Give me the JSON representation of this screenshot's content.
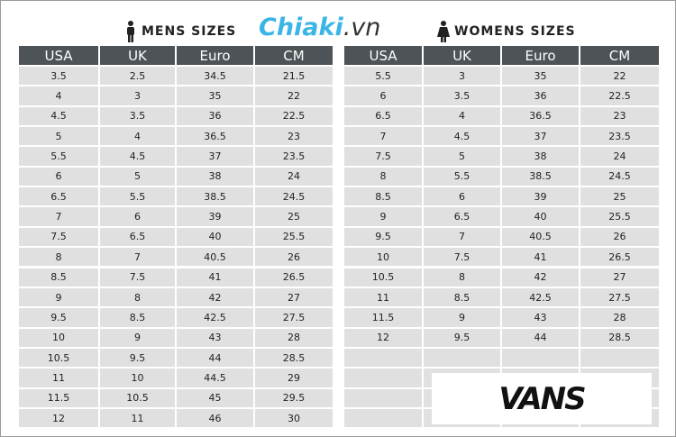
{
  "header": {
    "mens_title": "MENS SIZES",
    "logo_main": "Chiaki",
    "logo_suffix": ".vn",
    "womens_title": "WOMENS SIZES"
  },
  "mens": {
    "columns": [
      "USA",
      "UK",
      "Euro",
      "CM"
    ],
    "rows": [
      [
        3.5,
        2.5,
        34.5,
        21.5
      ],
      [
        4,
        3,
        35,
        22
      ],
      [
        4.5,
        3.5,
        36,
        22.5
      ],
      [
        5,
        4,
        36.5,
        23
      ],
      [
        5.5,
        4.5,
        37,
        23.5
      ],
      [
        6,
        5,
        38,
        24
      ],
      [
        6.5,
        5.5,
        38.5,
        24.5
      ],
      [
        7,
        6,
        39,
        25
      ],
      [
        7.5,
        6.5,
        40,
        25.5
      ],
      [
        8,
        7,
        40.5,
        26
      ],
      [
        8.5,
        7.5,
        41,
        26.5
      ],
      [
        9,
        8,
        42,
        27
      ],
      [
        9.5,
        8.5,
        42.5,
        27.5
      ],
      [
        10,
        9,
        43,
        28
      ],
      [
        10.5,
        9.5,
        44,
        28.5
      ],
      [
        11,
        10,
        44.5,
        29
      ],
      [
        11.5,
        10.5,
        45,
        29.5
      ],
      [
        12,
        11,
        46,
        30
      ]
    ]
  },
  "womens": {
    "columns": [
      "USA",
      "UK",
      "Euro",
      "CM"
    ],
    "rows": [
      [
        5.5,
        3,
        35,
        22
      ],
      [
        6,
        3.5,
        36,
        22.5
      ],
      [
        6.5,
        4,
        36.5,
        23
      ],
      [
        7,
        4.5,
        37,
        23.5
      ],
      [
        7.5,
        5,
        38,
        24
      ],
      [
        8,
        5.5,
        38.5,
        24.5
      ],
      [
        8.5,
        6,
        39,
        25
      ],
      [
        9,
        6.5,
        40,
        25.5
      ],
      [
        9.5,
        7,
        40.5,
        26
      ],
      [
        10,
        7.5,
        41,
        26.5
      ],
      [
        10.5,
        8,
        42,
        27
      ],
      [
        11,
        8.5,
        42.5,
        27.5
      ],
      [
        11.5,
        9,
        43,
        28
      ],
      [
        12,
        9.5,
        44,
        28.5
      ]
    ]
  },
  "brand": "VANS"
}
